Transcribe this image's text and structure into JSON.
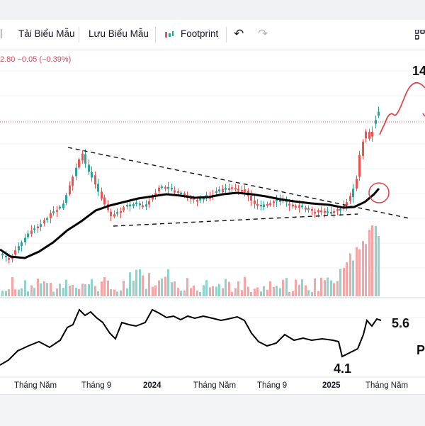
{
  "toolbar": {
    "load_template": "Tải Biểu Mẫu",
    "save_template": "Lưu Biểu Mẫu",
    "footprint": "Footprint",
    "undo_glyph": "↶",
    "redo_glyph": "↷"
  },
  "price_change": "2.80  −0.05 (−0.39%)",
  "annotations": {
    "price_target": "14",
    "rsi_high": "5.6",
    "rsi_low": "4.1",
    "right_letter": "P"
  },
  "x_axis": [
    {
      "label": "Tháng Năm",
      "bold": false
    },
    {
      "label": "Tháng 9",
      "bold": false
    },
    {
      "label": "2024",
      "bold": true
    },
    {
      "label": "Tháng Năm",
      "bold": false
    },
    {
      "label": "Tháng 9",
      "bold": false
    },
    {
      "label": "2025",
      "bold": true
    },
    {
      "label": "Tháng Năm",
      "bold": false
    }
  ],
  "colors": {
    "up": "#26a69a",
    "down": "#ef5350",
    "vol_up": "#8fd3cb",
    "vol_down": "#f3a6a8",
    "ma": "#000000",
    "projection": "#e0484c"
  },
  "chart_data": {
    "type": "candlestick",
    "title": "",
    "ma_line": true,
    "trendlines": "descending-triangle-breakout",
    "indicator": "RSI",
    "indicator_values_shown": [
      5.6,
      4.1
    ]
  }
}
